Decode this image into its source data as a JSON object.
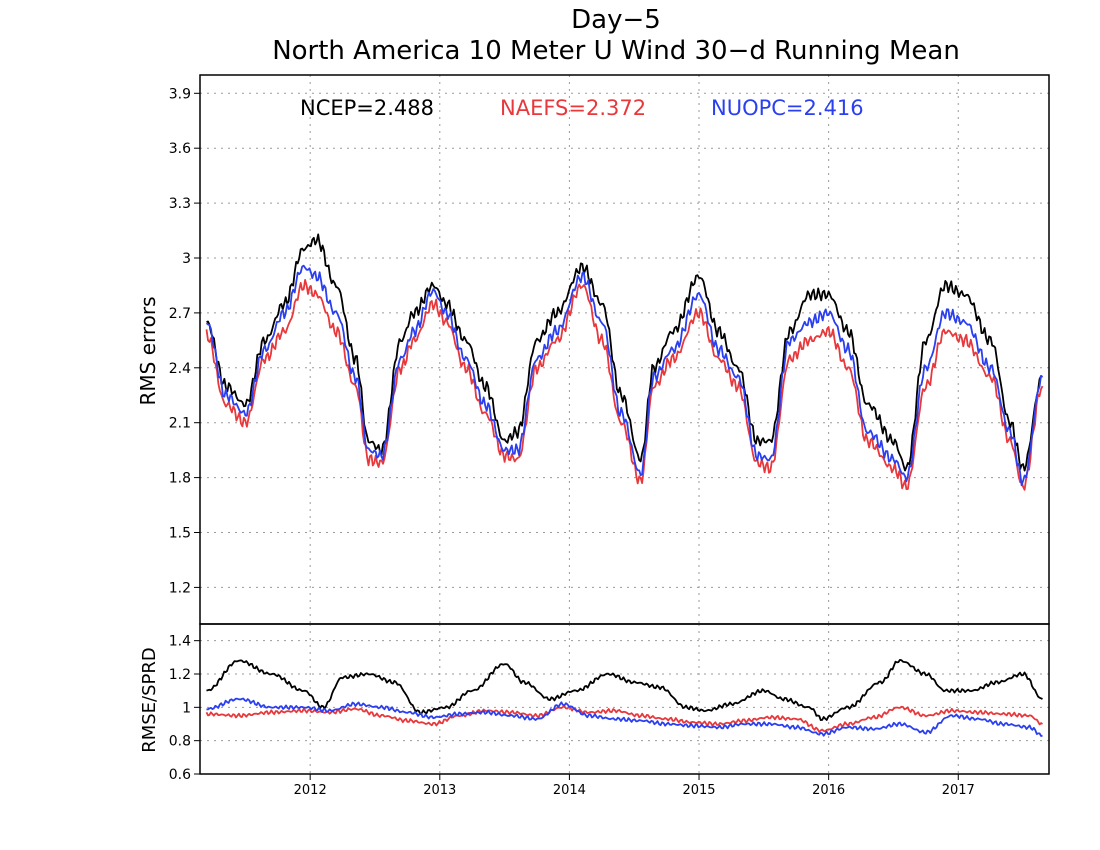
{
  "header": {
    "title_line1": "Day−5",
    "title_line2": "North America 10 Meter U Wind 30−d Running Mean"
  },
  "legend": {
    "ncep": "NCEP=2.488",
    "naefs": "NAEFS=2.372",
    "nuopc": "NUOPC=2.416"
  },
  "colors": {
    "NCEP": "#000000",
    "NAEFS": "#e8383b",
    "NUOPC": "#2a3ff0",
    "grid": "#9a9a9a"
  },
  "chart_data": [
    {
      "type": "line",
      "panel": "top",
      "ylabel": "RMS errors",
      "xlim": [
        2011.2,
        2017.75
      ],
      "ylim": [
        1.0,
        4.0
      ],
      "yticks": [
        "1.2",
        "1.5",
        "1.8",
        "2.1",
        "2.4",
        "2.7",
        "3",
        "3.3",
        "3.6",
        "3.9"
      ],
      "grid": true,
      "series": [
        {
          "name": "NCEP",
          "x": [
            2011.25,
            2011.4,
            2011.55,
            2011.7,
            2011.85,
            2012.0,
            2012.1,
            2012.25,
            2012.4,
            2012.5,
            2012.6,
            2012.75,
            2012.85,
            2013.0,
            2013.1,
            2013.25,
            2013.4,
            2013.55,
            2013.65,
            2013.8,
            2013.95,
            2014.15,
            2014.3,
            2014.45,
            2014.6,
            2014.7,
            2014.85,
            2015.05,
            2015.2,
            2015.35,
            2015.5,
            2015.6,
            2015.75,
            2015.9,
            2016.05,
            2016.2,
            2016.35,
            2016.55,
            2016.65,
            2016.8,
            2016.95,
            2017.1,
            2017.3,
            2017.45,
            2017.55,
            2017.7
          ],
          "y": [
            2.65,
            2.3,
            2.2,
            2.55,
            2.75,
            3.05,
            3.1,
            2.85,
            2.45,
            2.0,
            1.95,
            2.55,
            2.7,
            2.85,
            2.75,
            2.55,
            2.3,
            2.0,
            2.05,
            2.55,
            2.7,
            2.95,
            2.75,
            2.25,
            1.9,
            2.4,
            2.6,
            2.9,
            2.6,
            2.4,
            2.0,
            2.0,
            2.6,
            2.8,
            2.8,
            2.6,
            2.2,
            2.0,
            1.85,
            2.55,
            2.85,
            2.8,
            2.55,
            2.1,
            1.85,
            2.35
          ]
        },
        {
          "name": "NAEFS",
          "x": [
            2011.25,
            2011.4,
            2011.55,
            2011.7,
            2011.85,
            2012.0,
            2012.1,
            2012.25,
            2012.4,
            2012.5,
            2012.6,
            2012.75,
            2012.85,
            2013.0,
            2013.1,
            2013.25,
            2013.4,
            2013.55,
            2013.65,
            2013.8,
            2013.95,
            2014.15,
            2014.3,
            2014.45,
            2014.6,
            2014.7,
            2014.85,
            2015.05,
            2015.2,
            2015.35,
            2015.5,
            2015.6,
            2015.75,
            2015.9,
            2016.05,
            2016.2,
            2016.35,
            2016.55,
            2016.65,
            2016.8,
            2016.95,
            2017.1,
            2017.3,
            2017.45,
            2017.55,
            2017.7
          ],
          "y": [
            2.58,
            2.2,
            2.1,
            2.45,
            2.6,
            2.85,
            2.8,
            2.6,
            2.3,
            1.9,
            1.88,
            2.4,
            2.55,
            2.75,
            2.65,
            2.4,
            2.15,
            1.92,
            1.9,
            2.4,
            2.55,
            2.85,
            2.55,
            2.1,
            1.78,
            2.3,
            2.45,
            2.7,
            2.45,
            2.3,
            1.88,
            1.85,
            2.45,
            2.55,
            2.6,
            2.4,
            2.0,
            1.85,
            1.75,
            2.3,
            2.6,
            2.55,
            2.35,
            2.0,
            1.75,
            2.3
          ]
        },
        {
          "name": "NUOPC",
          "x": [
            2011.25,
            2011.4,
            2011.55,
            2011.7,
            2011.85,
            2012.0,
            2012.1,
            2012.25,
            2012.4,
            2012.5,
            2012.6,
            2012.75,
            2012.85,
            2013.0,
            2013.1,
            2013.25,
            2013.4,
            2013.55,
            2013.65,
            2013.8,
            2013.95,
            2014.15,
            2014.3,
            2014.45,
            2014.6,
            2014.7,
            2014.85,
            2015.05,
            2015.2,
            2015.35,
            2015.5,
            2015.6,
            2015.75,
            2015.9,
            2016.05,
            2016.2,
            2016.35,
            2016.55,
            2016.65,
            2016.8,
            2016.95,
            2017.1,
            2017.3,
            2017.45,
            2017.55,
            2017.7
          ],
          "y": [
            2.65,
            2.25,
            2.15,
            2.5,
            2.7,
            2.95,
            2.9,
            2.7,
            2.35,
            1.95,
            1.92,
            2.45,
            2.6,
            2.82,
            2.7,
            2.45,
            2.2,
            1.95,
            1.95,
            2.45,
            2.6,
            2.9,
            2.65,
            2.15,
            1.82,
            2.35,
            2.5,
            2.8,
            2.5,
            2.35,
            1.92,
            1.9,
            2.55,
            2.65,
            2.7,
            2.5,
            2.05,
            1.9,
            1.8,
            2.4,
            2.7,
            2.65,
            2.4,
            2.05,
            1.78,
            2.35
          ]
        }
      ]
    },
    {
      "type": "line",
      "panel": "bottom",
      "ylabel": "RMSE/SPRD",
      "xlim": [
        2011.2,
        2017.75
      ],
      "ylim": [
        0.6,
        1.5
      ],
      "yticks": [
        "0.6",
        "0.8",
        "1",
        "1.2",
        "1.4"
      ],
      "xticks": [
        "2012",
        "2013",
        "2014",
        "2015",
        "2016",
        "2017"
      ],
      "grid": true,
      "series": [
        {
          "name": "NCEP",
          "x": [
            2011.25,
            2011.5,
            2011.75,
            2012.0,
            2012.15,
            2012.3,
            2012.5,
            2012.7,
            2012.9,
            2013.1,
            2013.3,
            2013.55,
            2013.7,
            2013.9,
            2014.1,
            2014.35,
            2014.55,
            2014.75,
            2014.95,
            2015.1,
            2015.3,
            2015.55,
            2015.7,
            2015.9,
            2016.0,
            2016.2,
            2016.45,
            2016.6,
            2016.8,
            2016.95,
            2017.15,
            2017.35,
            2017.55,
            2017.7
          ],
          "y": [
            1.1,
            1.28,
            1.2,
            1.1,
            1.0,
            1.18,
            1.2,
            1.15,
            0.97,
            1.0,
            1.1,
            1.26,
            1.15,
            1.05,
            1.1,
            1.2,
            1.15,
            1.12,
            1.0,
            0.98,
            1.02,
            1.1,
            1.05,
            1.0,
            0.93,
            1.0,
            1.15,
            1.28,
            1.2,
            1.1,
            1.1,
            1.15,
            1.2,
            1.05
          ]
        },
        {
          "name": "NAEFS",
          "x": [
            2011.25,
            2011.5,
            2011.75,
            2012.0,
            2012.2,
            2012.4,
            2012.6,
            2012.8,
            2013.0,
            2013.2,
            2013.4,
            2013.6,
            2013.8,
            2014.0,
            2014.2,
            2014.4,
            2014.6,
            2014.8,
            2015.0,
            2015.2,
            2015.4,
            2015.6,
            2015.8,
            2016.0,
            2016.2,
            2016.4,
            2016.6,
            2016.8,
            2017.0,
            2017.2,
            2017.4,
            2017.6,
            2017.7
          ],
          "y": [
            0.96,
            0.95,
            0.97,
            0.98,
            0.97,
            0.99,
            0.95,
            0.92,
            0.9,
            0.95,
            0.98,
            0.97,
            0.95,
            1.0,
            0.97,
            0.98,
            0.95,
            0.93,
            0.91,
            0.9,
            0.92,
            0.94,
            0.93,
            0.86,
            0.9,
            0.94,
            1.0,
            0.95,
            0.98,
            0.97,
            0.96,
            0.95,
            0.9
          ]
        },
        {
          "name": "NUOPC",
          "x": [
            2011.25,
            2011.5,
            2011.75,
            2012.0,
            2012.2,
            2012.4,
            2012.6,
            2012.8,
            2013.0,
            2013.2,
            2013.4,
            2013.6,
            2013.8,
            2014.0,
            2014.2,
            2014.4,
            2014.6,
            2014.8,
            2015.0,
            2015.2,
            2015.4,
            2015.6,
            2015.8,
            2016.0,
            2016.2,
            2016.4,
            2016.6,
            2016.8,
            2017.0,
            2017.2,
            2017.4,
            2017.6,
            2017.7
          ],
          "y": [
            0.99,
            1.05,
            1.0,
            1.0,
            0.98,
            1.02,
            1.0,
            0.97,
            0.94,
            0.96,
            0.97,
            0.95,
            0.93,
            1.02,
            0.95,
            0.93,
            0.92,
            0.9,
            0.89,
            0.88,
            0.9,
            0.9,
            0.88,
            0.84,
            0.88,
            0.87,
            0.9,
            0.85,
            0.95,
            0.93,
            0.9,
            0.88,
            0.83
          ]
        }
      ]
    }
  ]
}
